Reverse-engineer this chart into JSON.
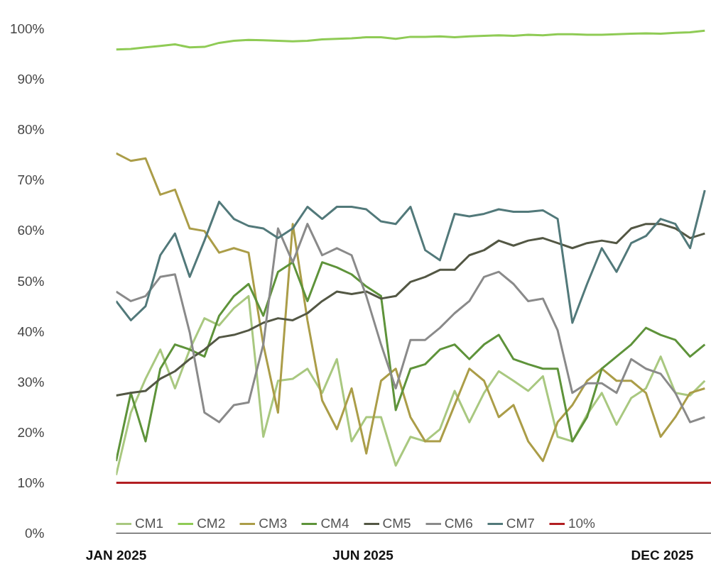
{
  "chart_data": {
    "type": "line",
    "x": [
      "2025-01-01",
      "2025-01-10",
      "2025-01-19",
      "2025-01-28",
      "2025-02-06",
      "2025-02-15",
      "2025-02-24",
      "2025-03-05",
      "2025-03-14",
      "2025-03-23",
      "2025-04-01",
      "2025-04-10",
      "2025-04-19",
      "2025-04-28",
      "2025-05-07",
      "2025-05-16",
      "2025-05-25",
      "2025-06-03",
      "2025-06-12",
      "2025-06-21",
      "2025-06-30",
      "2025-07-09",
      "2025-07-18",
      "2025-07-27",
      "2025-08-05",
      "2025-08-14",
      "2025-08-23",
      "2025-09-01",
      "2025-09-10",
      "2025-09-19",
      "2025-09-28",
      "2025-10-07",
      "2025-10-16",
      "2025-10-25",
      "2025-11-03",
      "2025-11-12",
      "2025-11-21",
      "2025-11-30",
      "2025-12-09",
      "2025-12-18",
      "2025-12-27"
    ],
    "series": [
      {
        "name": "CM1",
        "color": "#a9c880",
        "values": [
          11.5,
          23.9,
          30.6,
          36.4,
          28.7,
          36.4,
          42.6,
          41.2,
          44.6,
          47,
          19.1,
          30.2,
          30.6,
          32.6,
          27.8,
          34.5,
          18.2,
          23,
          23,
          13.4,
          19.1,
          18.2,
          20.6,
          28.2,
          22,
          27.8,
          32.1,
          30.2,
          28.2,
          31.1,
          19.1,
          18.2,
          23.5,
          27.8,
          21.5,
          26.8,
          28.7,
          35,
          27.8,
          27.3,
          30.2
        ]
      },
      {
        "name": "CM2",
        "color": "#8fcb55",
        "values": [
          95.9,
          96,
          96.3,
          96.6,
          96.9,
          96.3,
          96.4,
          97.2,
          97.6,
          97.8,
          97.7,
          97.6,
          97.5,
          97.6,
          97.9,
          98,
          98.1,
          98.3,
          98.3,
          98,
          98.4,
          98.4,
          98.5,
          98.3,
          98.5,
          98.6,
          98.7,
          98.6,
          98.8,
          98.7,
          98.9,
          98.9,
          98.8,
          98.8,
          98.9,
          99,
          99.1,
          99,
          99.2,
          99.3,
          99.6
        ]
      },
      {
        "name": "CM3",
        "color": "#ab9d48",
        "values": [
          75.3,
          73.8,
          74.3,
          67.1,
          68.1,
          60.4,
          59.9,
          55.6,
          56.5,
          55.6,
          37.4,
          23.9,
          61.3,
          42.2,
          26.3,
          20.6,
          28.7,
          15.8,
          30.2,
          32.6,
          23,
          18.2,
          18.2,
          25.4,
          32.6,
          30.2,
          23,
          25.4,
          18.2,
          14.3,
          22,
          25.4,
          30.2,
          32.6,
          30.2,
          30.2,
          27.8,
          19.1,
          23,
          27.8,
          28.7
        ]
      },
      {
        "name": "CM4",
        "color": "#5e933a",
        "values": [
          14.3,
          27.8,
          18.2,
          32.6,
          37.4,
          36.4,
          35,
          43.1,
          47,
          49.4,
          43.1,
          51.8,
          53.7,
          46,
          53.7,
          52.7,
          51.3,
          48.9,
          47,
          24.4,
          32.6,
          33.5,
          36.4,
          37.4,
          34.5,
          37.4,
          39.3,
          34.5,
          33.5,
          32.6,
          32.6,
          18.2,
          23,
          32.6,
          35,
          37.4,
          40.7,
          39.3,
          38.3,
          35,
          37.4
        ]
      },
      {
        "name": "CM5",
        "color": "#535744",
        "values": [
          27.3,
          27.8,
          28.2,
          30.6,
          32.1,
          34.5,
          36.4,
          38.8,
          39.3,
          40.2,
          41.7,
          42.6,
          42.2,
          43.6,
          46,
          47.9,
          47.4,
          47.9,
          46.5,
          47,
          49.8,
          50.8,
          52.2,
          52.2,
          55.1,
          56.1,
          58,
          57,
          58,
          58.5,
          57.5,
          56.5,
          57.5,
          58,
          57.5,
          60.4,
          61.3,
          61.3,
          60.4,
          58.5,
          59.4
        ]
      },
      {
        "name": "CM6",
        "color": "#8a8a8a",
        "values": [
          47.9,
          46,
          47,
          50.8,
          51.3,
          39.8,
          23.9,
          22,
          25.4,
          25.9,
          37.4,
          60.4,
          53.7,
          61.3,
          55.1,
          56.5,
          55.1,
          47,
          37.4,
          28.7,
          38.3,
          38.3,
          40.7,
          43.6,
          46,
          50.8,
          51.8,
          49.4,
          46,
          46.5,
          40.2,
          27.8,
          29.7,
          29.7,
          27.8,
          34.5,
          32.6,
          31.6,
          27.8,
          22,
          23
        ]
      },
      {
        "name": "CM7",
        "color": "#52797a",
        "values": [
          46,
          42.2,
          45,
          55.1,
          59.4,
          50.8,
          58,
          65.7,
          62.3,
          60.9,
          60.4,
          58.5,
          60.4,
          64.7,
          62.3,
          64.7,
          64.7,
          64.2,
          61.8,
          61.3,
          64.7,
          56.1,
          54.1,
          63.3,
          62.8,
          63.3,
          64.2,
          63.7,
          63.7,
          64,
          62.3,
          41.7,
          49.4,
          56.5,
          51.8,
          57.5,
          58.9,
          62.3,
          61.3,
          56.5,
          68
        ]
      }
    ],
    "ref_lines": [
      {
        "axis": "y",
        "value": 10,
        "label": "10%",
        "color": "#b21e22"
      }
    ],
    "xlim": [
      "2025-01-01",
      "2025-12-31"
    ],
    "xticks": [
      {
        "value": "2025-01-01",
        "label": "JAN 2025"
      },
      {
        "value": "2025-06-01",
        "label": "JUN 2025"
      },
      {
        "value": "2025-12-01",
        "label": "DEC 2025"
      }
    ],
    "ylim": [
      0,
      100
    ],
    "yticks": [
      {
        "value": 0,
        "label": "0%"
      },
      {
        "value": 10,
        "label": "10%"
      },
      {
        "value": 20,
        "label": "20%"
      },
      {
        "value": 30,
        "label": "30%"
      },
      {
        "value": 40,
        "label": "40%"
      },
      {
        "value": 50,
        "label": "50%"
      },
      {
        "value": 60,
        "label": "60%"
      },
      {
        "value": 70,
        "label": "70%"
      },
      {
        "value": 80,
        "label": "80%"
      },
      {
        "value": 90,
        "label": "90%"
      },
      {
        "value": 100,
        "label": "100%"
      }
    ],
    "legend": "bottom",
    "grid": false,
    "marker": "none",
    "line_style": "solid"
  }
}
